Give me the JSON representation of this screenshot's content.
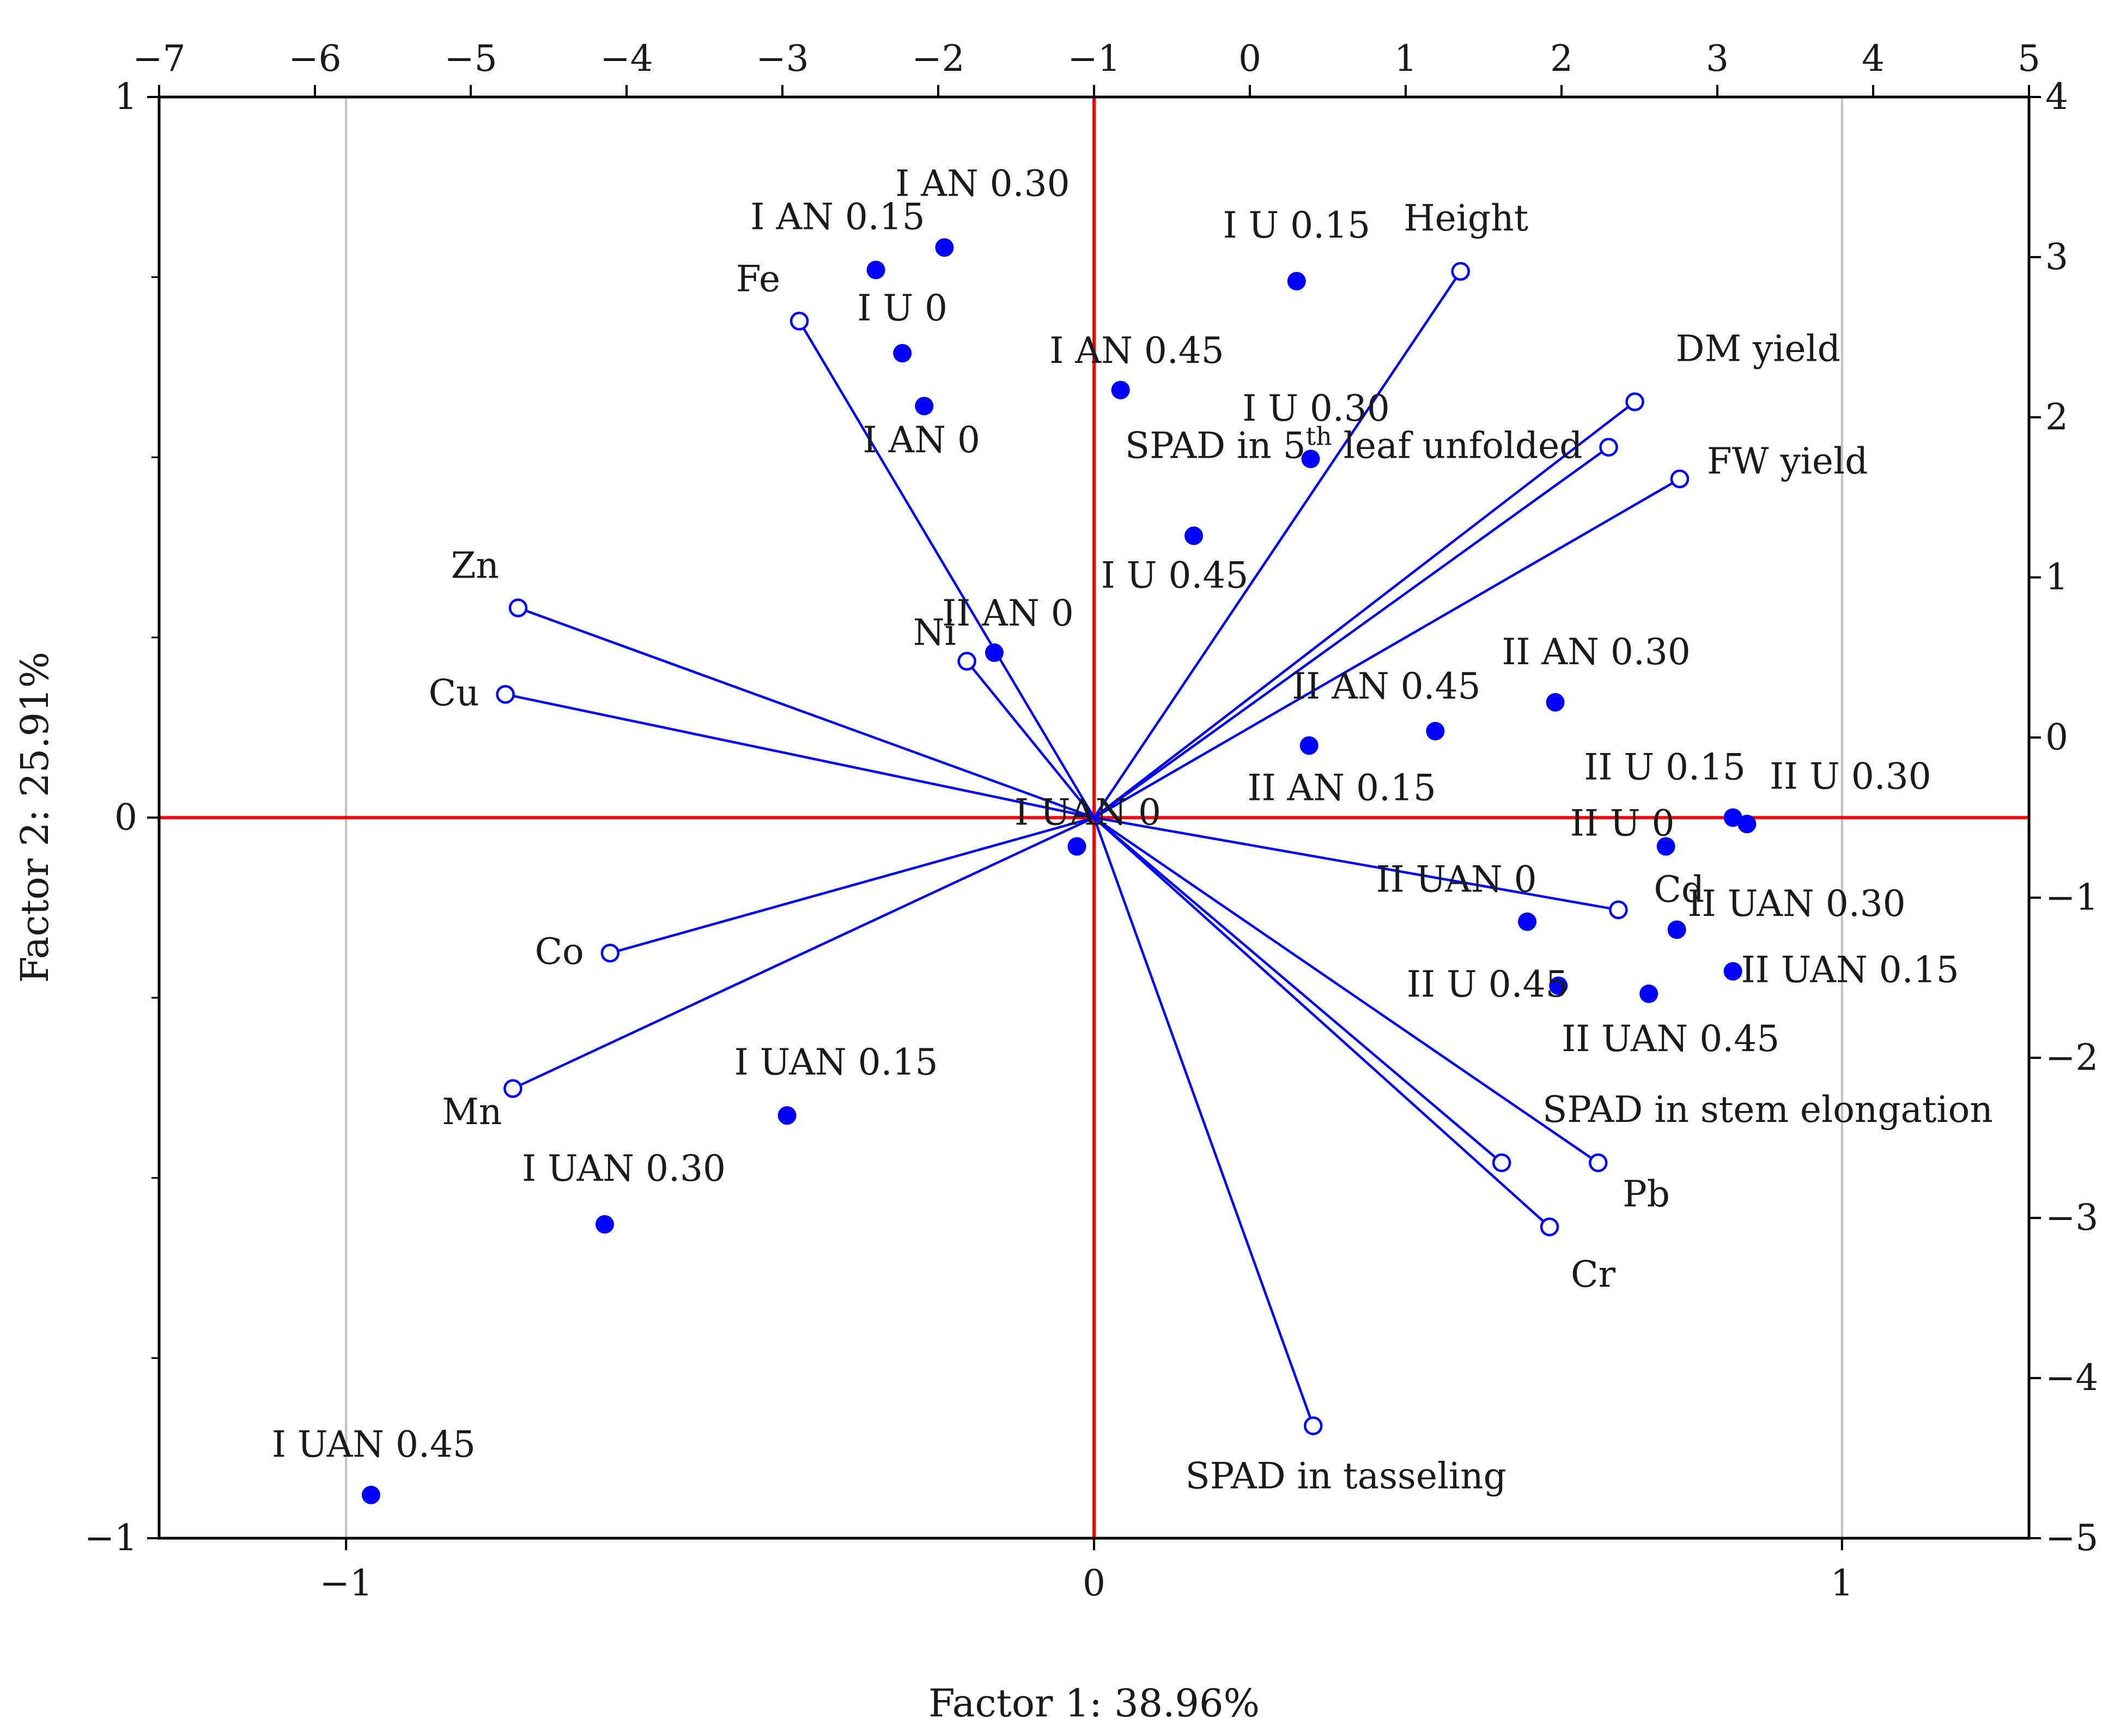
{
  "chart_data": {
    "type": "scatter",
    "title": "",
    "xlabel": "Factor 1: 38.96%",
    "ylabel": "Factor 2: 25.91%",
    "colors": {
      "axis_lines": "#ff0000",
      "vectors": "#0000ff",
      "points": "#0000ff",
      "grid": "#c0c0c0",
      "frame": "#000000"
    },
    "variable_axes": {
      "xlim": [
        -1.25,
        1.25
      ],
      "ylim": [
        -1,
        1
      ],
      "xticks": [
        {
          "v": -1,
          "label": "−1"
        },
        {
          "v": 0,
          "label": "0"
        },
        {
          "v": 1,
          "label": "1"
        }
      ],
      "yticks": [
        {
          "v": 1,
          "label": "1"
        },
        {
          "v": 0,
          "label": "0"
        },
        {
          "v": -1,
          "label": "−1"
        }
      ]
    },
    "case_axes": {
      "xlim": [
        -7,
        5
      ],
      "ylim": [
        -5,
        4
      ],
      "xticks": [
        {
          "v": -7,
          "label": "−7"
        },
        {
          "v": -6,
          "label": "−6"
        },
        {
          "v": -5,
          "label": "−5"
        },
        {
          "v": -4,
          "label": "−4"
        },
        {
          "v": -3,
          "label": "−3"
        },
        {
          "v": -2,
          "label": "−2"
        },
        {
          "v": -1,
          "label": "−1"
        },
        {
          "v": 0,
          "label": "0"
        },
        {
          "v": 1,
          "label": "1"
        },
        {
          "v": 2,
          "label": "2"
        },
        {
          "v": 3,
          "label": "3"
        },
        {
          "v": 4,
          "label": "4"
        },
        {
          "v": 5,
          "label": "5"
        }
      ],
      "yticks": [
        {
          "v": 4,
          "label": "4"
        },
        {
          "v": 3,
          "label": "3"
        },
        {
          "v": 2,
          "label": "2"
        },
        {
          "v": 1,
          "label": "1"
        },
        {
          "v": 0,
          "label": "0"
        },
        {
          "v": -1,
          "label": "−1"
        },
        {
          "v": -2,
          "label": "−2"
        },
        {
          "v": -3,
          "label": "−3"
        },
        {
          "v": -4,
          "label": "−4"
        },
        {
          "v": -5,
          "label": "−5"
        }
      ]
    },
    "variables": [
      {
        "name": "Height",
        "x": 0.49,
        "y": 0.758,
        "label_anchor": "above"
      },
      {
        "name": "DM yield",
        "x": 0.723,
        "y": 0.577,
        "label_anchor": "above-right"
      },
      {
        "name": "SPAD in 5",
        "sup": "th",
        "tail": " leaf unfolded",
        "x": 0.688,
        "y": 0.514,
        "label_anchor": "left"
      },
      {
        "name": "FW yield",
        "x": 0.783,
        "y": 0.47,
        "label_anchor": "right"
      },
      {
        "name": "Fe",
        "x": -0.394,
        "y": 0.689,
        "label_anchor": "above-left"
      },
      {
        "name": "Zn",
        "x": -0.77,
        "y": 0.291,
        "label_anchor": "above-left"
      },
      {
        "name": "Cu",
        "x": -0.787,
        "y": 0.171,
        "label_anchor": "left"
      },
      {
        "name": "Ni",
        "x": -0.17,
        "y": 0.217,
        "label_anchor": "left"
      },
      {
        "name": "Co",
        "x": -0.647,
        "y": -0.188,
        "label_anchor": "left"
      },
      {
        "name": "Mn",
        "x": -0.777,
        "y": -0.376,
        "label_anchor": "below-left"
      },
      {
        "name": "Cd",
        "x": 0.701,
        "y": -0.128,
        "label_anchor": "above"
      },
      {
        "name": "SPAD in stem elongation",
        "x": 0.545,
        "y": -0.479,
        "label_anchor": "above-right"
      },
      {
        "name": "Pb",
        "x": 0.674,
        "y": -0.479,
        "label_anchor": "below-right"
      },
      {
        "name": "Cr",
        "x": 0.609,
        "y": -0.568,
        "label_anchor": "below"
      },
      {
        "name": "SPAD in tasseling",
        "x": 0.293,
        "y": -0.844,
        "label_anchor": "below"
      }
    ],
    "cases": [
      {
        "label": "I AN 0.30",
        "x": -1.96,
        "y": 3.06
      },
      {
        "label": "I AN 0.15",
        "x": -2.4,
        "y": 2.92
      },
      {
        "label": "I U 0",
        "x": -2.23,
        "y": 2.4
      },
      {
        "label": "I AN 0",
        "x": -2.09,
        "y": 2.07
      },
      {
        "label": "I U 0.15",
        "x": 0.3,
        "y": 2.85
      },
      {
        "label": "I AN 0.45",
        "x": -0.83,
        "y": 2.17
      },
      {
        "label": "I U 0.30",
        "x": 0.39,
        "y": 1.74
      },
      {
        "label": "I U 0.45",
        "x": -0.36,
        "y": 1.26
      },
      {
        "label": "II AN 0",
        "x": -1.64,
        "y": 0.53
      },
      {
        "label": "I UAN 0",
        "x": -1.11,
        "y": -0.68
      },
      {
        "label": "II AN 0.30",
        "x": 1.96,
        "y": 0.22
      },
      {
        "label": "II AN 0.45",
        "x": 1.19,
        "y": 0.04
      },
      {
        "label": "II AN 0.15",
        "x": 0.38,
        "y": -0.05
      },
      {
        "label": "II U 0.15",
        "x": 3.1,
        "y": -0.5
      },
      {
        "label": "II U 0.30",
        "x": 3.19,
        "y": -0.54
      },
      {
        "label": "II U 0",
        "x": 2.67,
        "y": -0.68
      },
      {
        "label": "II UAN 0",
        "x": 1.78,
        "y": -1.15
      },
      {
        "label": "II UAN 0.30",
        "x": 2.74,
        "y": -1.2
      },
      {
        "label": "II UAN 0.15",
        "x": 3.1,
        "y": -1.46
      },
      {
        "label": "II U 0.45",
        "x": 1.98,
        "y": -1.55
      },
      {
        "label": "II UAN 0.45",
        "x": 2.56,
        "y": -1.6
      },
      {
        "label": "I UAN 0.15",
        "x": -2.97,
        "y": -2.36
      },
      {
        "label": "I UAN 0.30",
        "x": -4.14,
        "y": -3.04
      },
      {
        "label": "I UAN 0.45",
        "x": -5.64,
        "y": -4.73
      }
    ]
  }
}
